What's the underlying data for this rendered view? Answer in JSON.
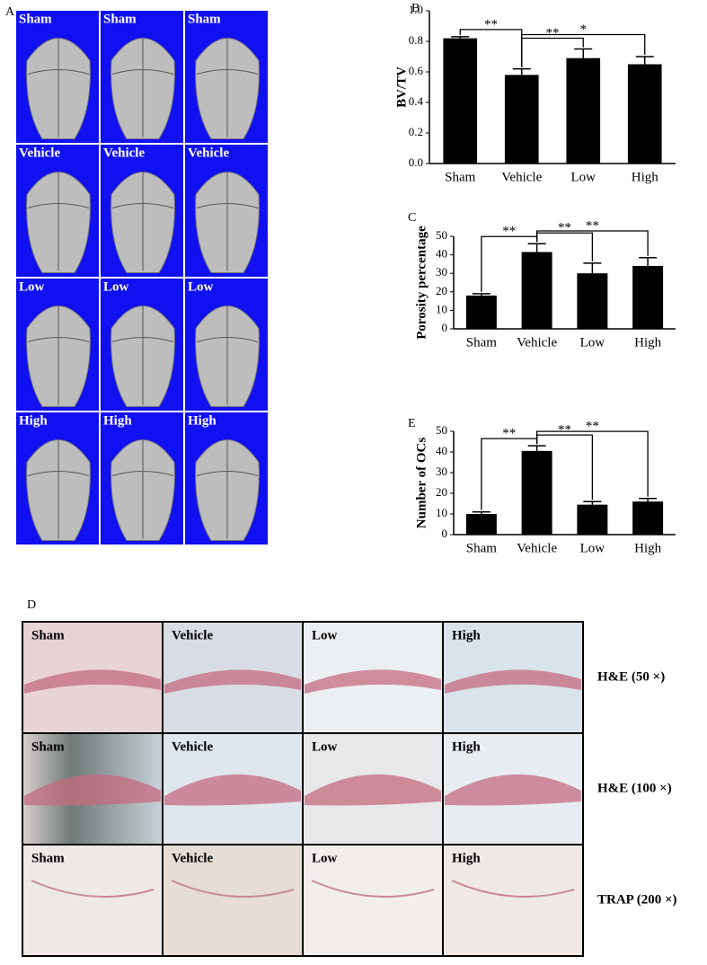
{
  "chart_data": [
    {
      "type": "bar",
      "panel": "B",
      "ylabel": "BV/TV",
      "categories": [
        "Sham",
        "Vehicle",
        "Low",
        "High"
      ],
      "values": [
        0.82,
        0.58,
        0.69,
        0.65
      ],
      "errors": [
        0.01,
        0.04,
        0.06,
        0.05
      ],
      "color": "#000000",
      "ylim": [
        0,
        1
      ],
      "yticks": [
        {
          "value": 0,
          "label": "0.0"
        },
        0.2,
        0.4,
        0.6,
        0.8,
        {
          "value": 1,
          "label": "1.0"
        }
      ],
      "annotations": [
        {
          "text": "**",
          "from": 0,
          "to": 1
        },
        {
          "text": "**",
          "from": 1,
          "to": 2
        },
        {
          "text": "*",
          "from": 1,
          "to": 3
        }
      ]
    },
    {
      "type": "bar",
      "panel": "C",
      "ylabel": "Porosity percentage",
      "categories": [
        "Sham",
        "Vehicle",
        "Low",
        "High"
      ],
      "values": [
        18,
        41.5,
        30,
        34
      ],
      "errors": [
        1,
        4.5,
        5.5,
        4.5
      ],
      "color": "#000000",
      "ylim": [
        0,
        50
      ],
      "yticks": [
        0,
        10,
        20,
        30,
        40,
        50
      ],
      "annotations": [
        {
          "text": "**",
          "from": 0,
          "to": 1
        },
        {
          "text": "**",
          "from": 1,
          "to": 2
        },
        {
          "text": "**",
          "from": 1,
          "to": 3
        }
      ]
    },
    {
      "type": "bar",
      "panel": "E",
      "ylabel": "Number of OCs",
      "categories": [
        "Sham",
        "Vehicle",
        "Low",
        "High"
      ],
      "values": [
        10,
        40.5,
        14.5,
        16
      ],
      "errors": [
        1,
        2.5,
        1.5,
        1.5
      ],
      "color": "#000000",
      "ylim": [
        0,
        50
      ],
      "yticks": [
        0,
        10,
        20,
        30,
        40,
        50
      ],
      "annotations": [
        {
          "text": "**",
          "from": 0,
          "to": 1
        },
        {
          "text": "**",
          "from": 1,
          "to": 2
        },
        {
          "text": "**",
          "from": 1,
          "to": 3
        }
      ]
    }
  ],
  "panel_a": {
    "panel": "A",
    "rows": [
      [
        "Sham",
        "Sham",
        "Sham"
      ],
      [
        "Vehicle",
        "Vehicle",
        "Vehicle"
      ],
      [
        "Low",
        "Low",
        "Low"
      ],
      [
        "High",
        "High",
        "High"
      ]
    ]
  },
  "panel_d": {
    "panel": "D",
    "columns": [
      "Sham",
      "Vehicle",
      "Low",
      "High"
    ],
    "rows": [
      "H&E (50 ×)",
      "H&E (100 ×)",
      "TRAP (200 ×)"
    ]
  }
}
